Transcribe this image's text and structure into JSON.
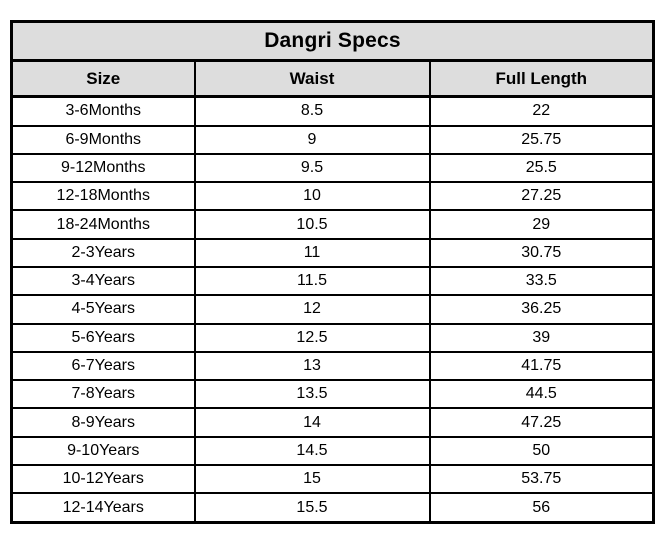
{
  "chart_data": {
    "type": "table",
    "title": "Dangri Specs",
    "columns": [
      "Size",
      "Waist",
      "Full Length"
    ],
    "rows": [
      [
        "3-6Months",
        8.5,
        22
      ],
      [
        "6-9Months",
        9,
        25.75
      ],
      [
        "9-12Months",
        9.5,
        25.5
      ],
      [
        "12-18Months",
        10,
        27.25
      ],
      [
        "18-24Months",
        10.5,
        29
      ],
      [
        "2-3Years",
        11,
        30.75
      ],
      [
        "3-4Years",
        11.5,
        33.5
      ],
      [
        "4-5Years",
        12,
        36.25
      ],
      [
        "5-6Years",
        12.5,
        39
      ],
      [
        "6-7Years",
        13,
        41.75
      ],
      [
        "7-8Years",
        13.5,
        44.5
      ],
      [
        "8-9Years",
        14,
        47.25
      ],
      [
        "9-10Years",
        14.5,
        50
      ],
      [
        "10-12Years",
        15,
        53.75
      ],
      [
        "12-14Years",
        15.5,
        56
      ]
    ]
  },
  "colors": {
    "header_bg": "#dddddd",
    "border": "#000000",
    "background": "#ffffff",
    "text": "#000000"
  }
}
